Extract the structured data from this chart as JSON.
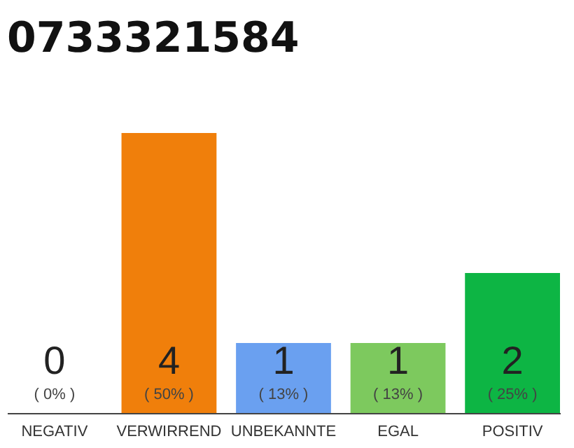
{
  "chart_data": {
    "type": "bar",
    "title": "0733321584",
    "categories": [
      "NEGATIV",
      "VERWIRREND",
      "UNBEKANNTE",
      "EGAL",
      "POSITIV"
    ],
    "values": [
      0,
      4,
      1,
      1,
      2
    ],
    "colors": [
      "#cccccc",
      "#f07f0b",
      "#6aa0f0",
      "#7dc95e",
      "#0db544"
    ],
    "data_labels": true,
    "tick_labels": "x",
    "annotations": [
      {
        "text": "( 0% )",
        "x": "NEGATIV",
        "y": 0
      },
      {
        "text": "( 50% )",
        "x": "VERWIRREND",
        "y": 0
      },
      {
        "text": "( 13% )",
        "x": "UNBEKANNTE",
        "y": 0
      },
      {
        "text": "( 13% )",
        "x": "EGAL",
        "y": 0
      },
      {
        "text": "( 25% )",
        "x": "POSITIV",
        "y": 0
      }
    ]
  }
}
